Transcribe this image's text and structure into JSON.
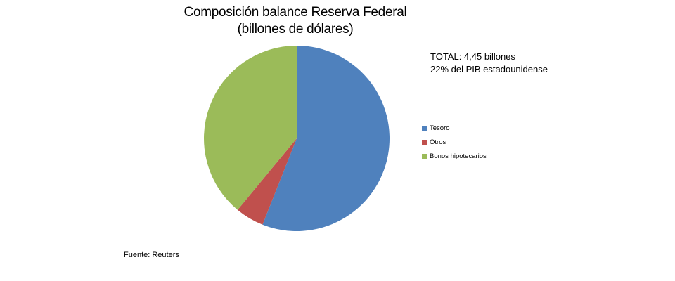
{
  "chart_data": {
    "type": "pie",
    "title": "Composición balance Reserva Federal",
    "subtitle": "(billones de dólares)",
    "categories": [
      "Tesoro",
      "Otros",
      "Bonos hipotecarios"
    ],
    "values": [
      56,
      5,
      39
    ],
    "colors": [
      "#4f81bd",
      "#c0504d",
      "#9bbb59"
    ],
    "legend_position": "right"
  },
  "annotation": {
    "line1": "TOTAL: 4,45 billones",
    "line2": "22% del PIB estadounidense"
  },
  "source": "Fuente: Reuters"
}
